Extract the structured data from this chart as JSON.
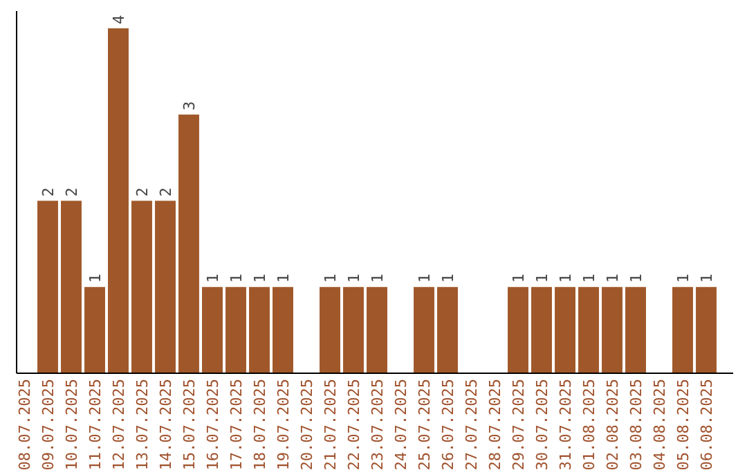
{
  "chart_data": {
    "type": "bar",
    "categories": [
      "08.07.2025",
      "09.07.2025",
      "10.07.2025",
      "11.07.2025",
      "12.07.2025",
      "13.07.2025",
      "14.07.2025",
      "15.07.2025",
      "16.07.2025",
      "17.07.2025",
      "18.07.2025",
      "19.07.2025",
      "20.07.2025",
      "21.07.2025",
      "22.07.2025",
      "23.07.2025",
      "24.07.2025",
      "25.07.2025",
      "26.07.2025",
      "27.07.2025",
      "28.07.2025",
      "29.07.2025",
      "30.07.2025",
      "31.07.2025",
      "01.08.2025",
      "02.08.2025",
      "03.08.2025",
      "04.08.2025",
      "05.08.2025",
      "06.08.2025"
    ],
    "values": [
      0,
      2,
      2,
      1,
      4,
      2,
      2,
      3,
      1,
      1,
      1,
      1,
      0,
      1,
      1,
      1,
      0,
      1,
      1,
      0,
      0,
      1,
      1,
      1,
      1,
      1,
      1,
      0,
      1,
      1
    ],
    "value_labels": [
      null,
      "2",
      "2",
      "1",
      "4",
      "2",
      "2",
      "3",
      "1",
      "1",
      "1",
      "1",
      null,
      "1",
      "1",
      "1",
      null,
      "1",
      "1",
      null,
      null,
      "1",
      "1",
      "1",
      "1",
      "1",
      "1",
      null,
      "1",
      "1"
    ],
    "color": "#a0582a",
    "ylim": [
      0,
      4.2
    ],
    "tick_labels": "x"
  }
}
